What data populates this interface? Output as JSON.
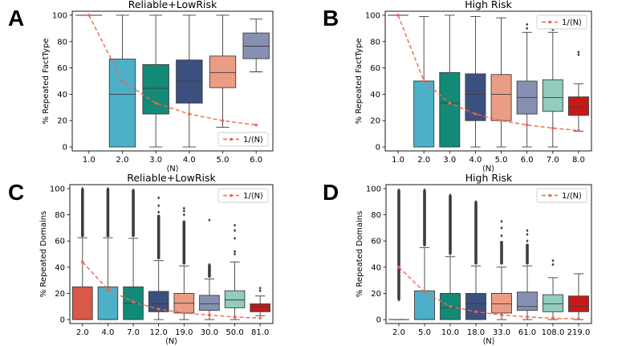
{
  "chart_data": [
    {
      "panel": "A",
      "type": "box",
      "title": "Reliable+LowRisk",
      "ylabel": "% Repeated FactType",
      "xlabel": "⟨N⟩",
      "ylim": [
        -3,
        103
      ],
      "yticks": [
        0,
        20,
        40,
        60,
        80,
        100
      ],
      "categories": [
        "1.0",
        "2.0",
        "3.0",
        "4.0",
        "5.0",
        "6.0"
      ],
      "colors": [
        "#4cb1c8",
        "#4cb1c8",
        "#138a77",
        "#3c5080",
        "#eb9c84",
        "#8690b3"
      ],
      "boxes": [
        {
          "q1": 100,
          "median": 100,
          "q3": 100,
          "whislo": 100,
          "whishi": 100,
          "fliers": []
        },
        {
          "q1": 0,
          "median": 40,
          "q3": 66.7,
          "whislo": 0,
          "whishi": 100,
          "fliers": []
        },
        {
          "q1": 25,
          "median": 44.5,
          "q3": 62.5,
          "whislo": 0,
          "whishi": 100,
          "fliers": []
        },
        {
          "q1": 33.3,
          "median": 50,
          "q3": 66,
          "whislo": 0,
          "whishi": 100,
          "fliers": []
        },
        {
          "q1": 45,
          "median": 56.5,
          "q3": 69,
          "whislo": 15,
          "whishi": 100,
          "fliers": []
        },
        {
          "q1": 67,
          "median": 76.5,
          "q3": 86.5,
          "whislo": 57,
          "whishi": 97,
          "fliers": []
        }
      ],
      "reference_line": {
        "label": "1/⟨N⟩",
        "values": [
          100,
          50,
          33.3,
          25,
          20,
          16.7
        ]
      },
      "legend": {
        "loc": "lower-right",
        "label": "1/⟨N⟩"
      }
    },
    {
      "panel": "B",
      "type": "box",
      "title": "High Risk",
      "ylabel": "% Repeated FactType",
      "xlabel": "⟨N⟩",
      "ylim": [
        -3,
        103
      ],
      "yticks": [
        0,
        20,
        40,
        60,
        80,
        100
      ],
      "categories": [
        "1.0",
        "2.0",
        "3.0",
        "4.0",
        "5.0",
        "6.0",
        "7.0",
        "8.0"
      ],
      "colors": [
        "#4cb1c8",
        "#4cb1c8",
        "#138a77",
        "#3c5080",
        "#eb9c84",
        "#8690b3",
        "#92ccbd",
        "#c61a1a"
      ],
      "boxes": [
        {
          "q1": 100,
          "median": 100,
          "q3": 100,
          "whislo": 100,
          "whishi": 100,
          "fliers": []
        },
        {
          "q1": 0,
          "median": 50,
          "q3": 50,
          "whislo": 0,
          "whishi": 99,
          "fliers": []
        },
        {
          "q1": 0,
          "median": 33.5,
          "q3": 56.5,
          "whislo": 0,
          "whishi": 100,
          "fliers": []
        },
        {
          "q1": 20,
          "median": 40,
          "q3": 55.5,
          "whislo": 0,
          "whishi": 99,
          "fliers": []
        },
        {
          "q1": 20,
          "median": 40,
          "q3": 55,
          "whislo": 0,
          "whishi": 98,
          "fliers": []
        },
        {
          "q1": 25,
          "median": 37.5,
          "q3": 50,
          "whislo": 0,
          "whishi": 87,
          "fliers": [
            90,
            93
          ]
        },
        {
          "q1": 27,
          "median": 37.5,
          "q3": 51,
          "whislo": 0,
          "whishi": 87,
          "fliers": [
            89
          ]
        },
        {
          "q1": 24,
          "median": 30,
          "q3": 38,
          "whislo": 12,
          "whishi": 48,
          "fliers": [
            70,
            72
          ]
        }
      ],
      "reference_line": {
        "label": "1/⟨N⟩",
        "values": [
          100,
          50,
          33.3,
          25,
          20,
          16.7,
          14.3,
          12.5
        ]
      },
      "legend": {
        "loc": "upper-right",
        "label": "1/⟨N⟩"
      }
    },
    {
      "panel": "C",
      "type": "box",
      "title": "Reliable+LowRisk",
      "ylabel": "% Repeated Domains",
      "xlabel": "⟨N⟩",
      "ylim": [
        -3,
        103
      ],
      "yticks": [
        0,
        20,
        40,
        60,
        80,
        100
      ],
      "categories": [
        "2.0",
        "4.0",
        "7.0",
        "12.0",
        "19.0",
        "30.0",
        "50.0",
        "81.0"
      ],
      "colors": [
        "#d9584a",
        "#4cb1c8",
        "#138a77",
        "#3c5080",
        "#eb9c84",
        "#8690b3",
        "#92ccbd",
        "#c61a1a"
      ],
      "boxes": [
        {
          "q1": 0,
          "median": 0,
          "q3": 25,
          "whislo": 0,
          "whishi": 62.5,
          "fliers": [
            65,
            68,
            71,
            74,
            77,
            80,
            83,
            86,
            89,
            92,
            95,
            98,
            100
          ],
          "dense_fliers": [
            63,
            100
          ]
        },
        {
          "q1": 0,
          "median": 0,
          "q3": 25,
          "whislo": 0,
          "whishi": 62.5,
          "fliers": [
            65,
            70,
            75,
            80,
            85,
            90,
            95,
            100
          ],
          "dense_fliers": [
            63,
            100
          ]
        },
        {
          "q1": 0,
          "median": 12.5,
          "q3": 25,
          "whislo": 0,
          "whishi": 62,
          "fliers": [
            64,
            70,
            75,
            80,
            85,
            90,
            95,
            99
          ],
          "dense_fliers": [
            63,
            99
          ]
        },
        {
          "q1": 6,
          "median": 12,
          "q3": 21.5,
          "whislo": 0,
          "whishi": 45,
          "fliers": [
            47,
            52,
            57,
            62,
            67,
            72,
            77,
            82,
            87,
            93
          ],
          "dense_fliers": [
            46,
            80
          ]
        },
        {
          "q1": 5,
          "median": 12.5,
          "q3": 20,
          "whislo": 0,
          "whishi": 41,
          "fliers": [
            43,
            47,
            51,
            55,
            60,
            65,
            70,
            75,
            80,
            83,
            85
          ],
          "dense_fliers": [
            42,
            75
          ]
        },
        {
          "q1": 7,
          "median": 12,
          "q3": 18.5,
          "whislo": 0,
          "whishi": 31,
          "fliers": [
            33,
            36,
            39,
            42,
            76
          ],
          "dense_fliers": [
            32,
            42
          ]
        },
        {
          "q1": 9,
          "median": 15,
          "q3": 22,
          "whislo": 0,
          "whishi": 44,
          "fliers": [
            50,
            52,
            62,
            68,
            72
          ],
          "dense_fliers": []
        },
        {
          "q1": 6,
          "median": 10,
          "q3": 12,
          "whislo": 3,
          "whishi": 18,
          "fliers": [
            22,
            24
          ],
          "dense_fliers": []
        }
      ],
      "reference_line": {
        "label": "1/⟨N⟩",
        "values": [
          44,
          23,
          13.5,
          8,
          5,
          3.5,
          2,
          1.2
        ]
      },
      "legend": {
        "loc": "upper-right",
        "label": "1/⟨N⟩"
      }
    },
    {
      "panel": "D",
      "type": "box",
      "title": "High Risk",
      "ylabel": "% Repeated Domains",
      "xlabel": "⟨N⟩",
      "ylim": [
        -3,
        103
      ],
      "yticks": [
        0,
        20,
        40,
        60,
        80,
        100
      ],
      "categories": [
        "2.0",
        "5.0",
        "10.0",
        "18.0",
        "33.0",
        "61.0",
        "108.0",
        "219.0"
      ],
      "colors": [
        "#d9584a",
        "#4cb1c8",
        "#138a77",
        "#3c5080",
        "#eb9c84",
        "#8690b3",
        "#92ccbd",
        "#c61a1a"
      ],
      "boxes": [
        {
          "q1": 0,
          "median": 0,
          "q3": 0,
          "whislo": 0,
          "whishi": 0,
          "fliers": [
            15,
            20,
            25,
            30,
            35,
            40,
            45,
            50,
            55,
            60,
            65,
            70,
            75,
            80,
            85,
            90,
            95,
            99
          ],
          "dense_fliers": [
            15,
            99
          ]
        },
        {
          "q1": 0,
          "median": 0,
          "q3": 22,
          "whislo": 0,
          "whishi": 55,
          "fliers": [
            57,
            60,
            65,
            70,
            75,
            80,
            85,
            90,
            95,
            99
          ],
          "dense_fliers": [
            56,
            99
          ]
        },
        {
          "q1": 0,
          "median": 9,
          "q3": 20,
          "whislo": 0,
          "whishi": 48,
          "fliers": [
            50,
            55,
            60,
            65,
            70,
            75,
            80,
            85,
            90,
            95
          ],
          "dense_fliers": [
            50,
            95
          ]
        },
        {
          "q1": 0,
          "median": 12,
          "q3": 20,
          "whislo": 0,
          "whishi": 41,
          "fliers": [
            43,
            47,
            51,
            55,
            60,
            65,
            70,
            75,
            80,
            85,
            90
          ],
          "dense_fliers": [
            42,
            90
          ]
        },
        {
          "q1": 5,
          "median": 12,
          "q3": 20,
          "whislo": 0,
          "whishi": 40,
          "fliers": [
            43,
            48,
            53,
            58,
            64,
            70,
            75
          ],
          "dense_fliers": [
            42,
            60
          ]
        },
        {
          "q1": 7,
          "median": 10,
          "q3": 21,
          "whislo": 0,
          "whishi": 41,
          "fliers": [
            43,
            47,
            51,
            55,
            60,
            65,
            68
          ],
          "dense_fliers": [
            42,
            58
          ]
        },
        {
          "q1": 6,
          "median": 12,
          "q3": 19,
          "whislo": 0,
          "whishi": 32,
          "fliers": [
            42,
            45
          ],
          "dense_fliers": []
        },
        {
          "q1": 6,
          "median": 10,
          "q3": 18,
          "whislo": 0,
          "whishi": 35,
          "fliers": [],
          "dense_fliers": []
        }
      ],
      "reference_line": {
        "label": "1/⟨N⟩",
        "values": [
          40,
          21,
          10,
          6,
          3.5,
          2,
          1,
          0.5
        ]
      },
      "legend": {
        "loc": "upper-right",
        "label": "1/⟨N⟩"
      }
    }
  ],
  "panel_letters": [
    "A",
    "B",
    "C",
    "D"
  ]
}
